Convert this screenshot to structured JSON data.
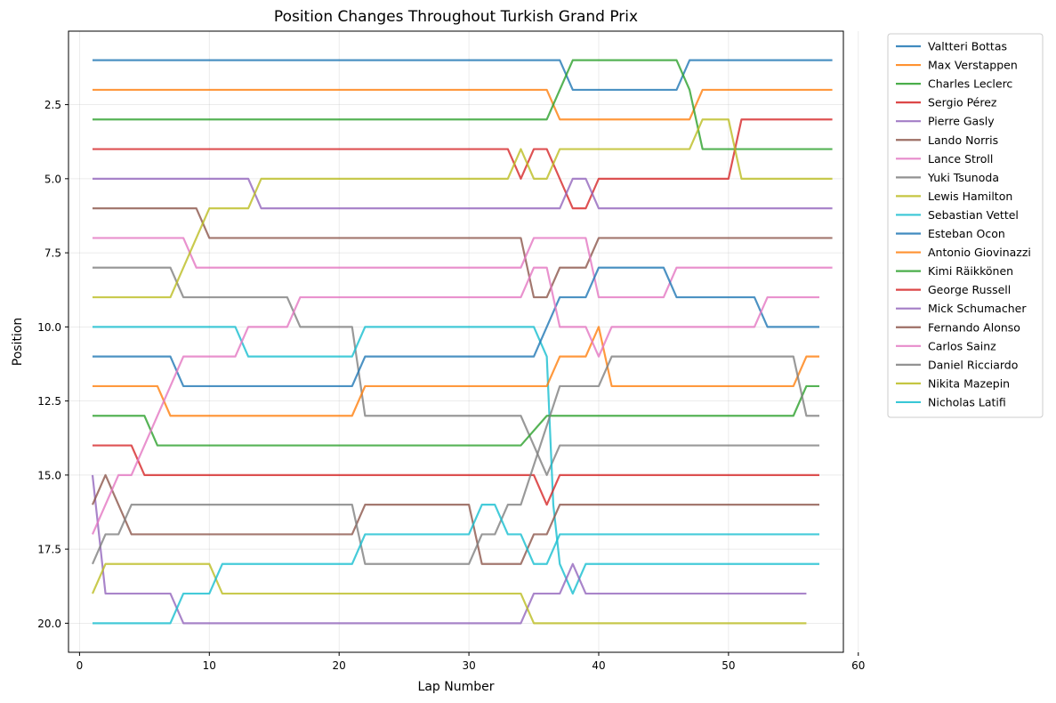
{
  "chart_data": {
    "type": "line",
    "title": "Position Changes Throughout Turkish Grand Prix",
    "xlabel": "Lap Number",
    "ylabel": "Position",
    "xlim": [
      -0.85,
      58.85
    ],
    "ylim": [
      20.98,
      0.02
    ],
    "y_inverted": true,
    "xticks": [
      0,
      10,
      20,
      30,
      40,
      50,
      60
    ],
    "yticks": [
      2.5,
      5.0,
      7.5,
      10.0,
      12.5,
      15.0,
      17.5,
      20.0
    ],
    "ytick_labels": [
      "2.5",
      "5.0",
      "7.5",
      "10.0",
      "12.5",
      "15.0",
      "17.5",
      "20.0"
    ],
    "grid": true,
    "legend_position": "outside-right",
    "series": [
      {
        "name": "Valtteri Bottas",
        "color": "#1f77b4",
        "points": [
          [
            1,
            1
          ],
          [
            37,
            1
          ],
          [
            38,
            2
          ],
          [
            46,
            2
          ],
          [
            47,
            1
          ],
          [
            58,
            1
          ]
        ]
      },
      {
        "name": "Max Verstappen",
        "color": "#ff7f0e",
        "points": [
          [
            1,
            2
          ],
          [
            36,
            2
          ],
          [
            37,
            3
          ],
          [
            47,
            3
          ],
          [
            48,
            2
          ],
          [
            58,
            2
          ]
        ]
      },
      {
        "name": "Charles Leclerc",
        "color": "#2ca02c",
        "points": [
          [
            1,
            3
          ],
          [
            36,
            3
          ],
          [
            38,
            1
          ],
          [
            46,
            1
          ],
          [
            47,
            2
          ],
          [
            48,
            4
          ],
          [
            58,
            4
          ]
        ]
      },
      {
        "name": "Sergio Pérez",
        "color": "#d62728",
        "points": [
          [
            1,
            4
          ],
          [
            33,
            4
          ],
          [
            34,
            5
          ],
          [
            35,
            4
          ],
          [
            36,
            4
          ],
          [
            38,
            6
          ],
          [
            39,
            6
          ],
          [
            40,
            5
          ],
          [
            50,
            5
          ],
          [
            51,
            3
          ],
          [
            58,
            3
          ]
        ]
      },
      {
        "name": "Pierre Gasly",
        "color": "#9467bd",
        "points": [
          [
            1,
            5
          ],
          [
            13,
            5
          ],
          [
            14,
            6
          ],
          [
            37,
            6
          ],
          [
            38,
            5
          ],
          [
            39,
            5
          ],
          [
            40,
            6
          ],
          [
            58,
            6
          ]
        ]
      },
      {
        "name": "Lando Norris",
        "color": "#8c564b",
        "points": [
          [
            1,
            6
          ],
          [
            9,
            6
          ],
          [
            10,
            7
          ],
          [
            34,
            7
          ],
          [
            35,
            9
          ],
          [
            36,
            9
          ],
          [
            37,
            8
          ],
          [
            39,
            8
          ],
          [
            40,
            7
          ],
          [
            58,
            7
          ]
        ]
      },
      {
        "name": "Lance Stroll",
        "color": "#e377c2",
        "points": [
          [
            1,
            7
          ],
          [
            8,
            7
          ],
          [
            9,
            8
          ],
          [
            34,
            8
          ],
          [
            35,
            7
          ],
          [
            39,
            7
          ],
          [
            40,
            9
          ],
          [
            45,
            9
          ],
          [
            46,
            8
          ],
          [
            58,
            8
          ]
        ]
      },
      {
        "name": "Yuki Tsunoda",
        "color": "#7f7f7f",
        "points": [
          [
            1,
            8
          ],
          [
            7,
            8
          ],
          [
            8,
            9
          ],
          [
            16,
            9
          ],
          [
            17,
            10
          ],
          [
            21,
            10
          ],
          [
            22,
            13
          ],
          [
            34,
            13
          ],
          [
            35,
            14
          ],
          [
            36,
            15
          ],
          [
            37,
            14
          ],
          [
            57,
            14
          ]
        ]
      },
      {
        "name": "Lewis Hamilton",
        "color": "#bcbd22",
        "points": [
          [
            1,
            9
          ],
          [
            7,
            9
          ],
          [
            10,
            6
          ],
          [
            13,
            6
          ],
          [
            14,
            5
          ],
          [
            33,
            5
          ],
          [
            34,
            4
          ],
          [
            35,
            5
          ],
          [
            36,
            5
          ],
          [
            37,
            4
          ],
          [
            47,
            4
          ],
          [
            48,
            3
          ],
          [
            50,
            3
          ],
          [
            51,
            5
          ],
          [
            58,
            5
          ]
        ]
      },
      {
        "name": "Sebastian Vettel",
        "color": "#17becf",
        "points": [
          [
            1,
            10
          ],
          [
            12,
            10
          ],
          [
            13,
            11
          ],
          [
            21,
            11
          ],
          [
            22,
            10
          ],
          [
            35,
            10
          ],
          [
            36,
            11
          ],
          [
            36.5,
            16
          ],
          [
            37,
            18
          ],
          [
            38,
            19
          ],
          [
            39,
            18
          ],
          [
            57,
            18
          ]
        ]
      },
      {
        "name": "Esteban Ocon",
        "color": "#1f77b4",
        "points": [
          [
            1,
            11
          ],
          [
            7,
            11
          ],
          [
            8,
            12
          ],
          [
            21,
            12
          ],
          [
            22,
            11
          ],
          [
            35,
            11
          ],
          [
            37,
            9
          ],
          [
            39,
            9
          ],
          [
            40,
            8
          ],
          [
            45,
            8
          ],
          [
            46,
            9
          ],
          [
            52,
            9
          ],
          [
            53,
            10
          ],
          [
            57,
            10
          ]
        ]
      },
      {
        "name": "Antonio Giovinazzi",
        "color": "#ff7f0e",
        "points": [
          [
            1,
            12
          ],
          [
            6,
            12
          ],
          [
            7,
            13
          ],
          [
            21,
            13
          ],
          [
            22,
            12
          ],
          [
            36,
            12
          ],
          [
            37,
            11
          ],
          [
            39,
            11
          ],
          [
            40,
            10
          ],
          [
            41,
            12
          ],
          [
            55,
            12
          ],
          [
            56,
            11
          ],
          [
            57,
            11
          ]
        ]
      },
      {
        "name": "Kimi Räikkönen",
        "color": "#2ca02c",
        "points": [
          [
            1,
            13
          ],
          [
            5,
            13
          ],
          [
            6,
            14
          ],
          [
            34,
            14
          ],
          [
            36,
            13
          ],
          [
            55,
            13
          ],
          [
            56,
            12
          ],
          [
            57,
            12
          ]
        ]
      },
      {
        "name": "George Russell",
        "color": "#d62728",
        "points": [
          [
            1,
            14
          ],
          [
            4,
            14
          ],
          [
            5,
            15
          ],
          [
            35,
            15
          ],
          [
            36,
            16
          ],
          [
            37,
            15
          ],
          [
            57,
            15
          ]
        ]
      },
      {
        "name": "Mick Schumacher",
        "color": "#9467bd",
        "points": [
          [
            1,
            15
          ],
          [
            2,
            19
          ],
          [
            7,
            19
          ],
          [
            8,
            20
          ],
          [
            34,
            20
          ],
          [
            35,
            19
          ],
          [
            37,
            19
          ],
          [
            38,
            18
          ],
          [
            39,
            19
          ],
          [
            56,
            19
          ]
        ]
      },
      {
        "name": "Fernando Alonso",
        "color": "#8c564b",
        "points": [
          [
            1,
            16
          ],
          [
            2,
            15
          ],
          [
            4,
            17
          ],
          [
            21,
            17
          ],
          [
            22,
            16
          ],
          [
            30,
            16
          ],
          [
            31,
            18
          ],
          [
            34,
            18
          ],
          [
            35,
            17
          ],
          [
            36,
            17
          ],
          [
            37,
            16
          ],
          [
            57,
            16
          ]
        ]
      },
      {
        "name": "Carlos Sainz",
        "color": "#e377c2",
        "points": [
          [
            1,
            17
          ],
          [
            3,
            15
          ],
          [
            4,
            15
          ],
          [
            8,
            11
          ],
          [
            12,
            11
          ],
          [
            13,
            10
          ],
          [
            16,
            10
          ],
          [
            17,
            9
          ],
          [
            34,
            9
          ],
          [
            35,
            8
          ],
          [
            36,
            8
          ],
          [
            37,
            10
          ],
          [
            38,
            10
          ],
          [
            39,
            10
          ],
          [
            40,
            11
          ],
          [
            41,
            10
          ],
          [
            52,
            10
          ],
          [
            53,
            9
          ],
          [
            57,
            9
          ]
        ]
      },
      {
        "name": "Daniel Ricciardo",
        "color": "#7f7f7f",
        "points": [
          [
            1,
            18
          ],
          [
            2,
            17
          ],
          [
            3,
            17
          ],
          [
            4,
            16
          ],
          [
            21,
            16
          ],
          [
            22,
            18
          ],
          [
            30,
            18
          ],
          [
            31,
            17
          ],
          [
            32,
            17
          ],
          [
            33,
            16
          ],
          [
            34,
            16
          ],
          [
            37,
            12
          ],
          [
            40,
            12
          ],
          [
            41,
            11
          ],
          [
            55,
            11
          ],
          [
            56,
            13
          ],
          [
            57,
            13
          ]
        ]
      },
      {
        "name": "Nikita Mazepin",
        "color": "#bcbd22",
        "points": [
          [
            1,
            19
          ],
          [
            2,
            18
          ],
          [
            10,
            18
          ],
          [
            11,
            19
          ],
          [
            34,
            19
          ],
          [
            35,
            20
          ],
          [
            56,
            20
          ]
        ]
      },
      {
        "name": "Nicholas Latifi",
        "color": "#17becf",
        "points": [
          [
            1,
            20
          ],
          [
            7,
            20
          ],
          [
            8,
            19
          ],
          [
            10,
            19
          ],
          [
            11,
            18
          ],
          [
            21,
            18
          ],
          [
            22,
            17
          ],
          [
            30,
            17
          ],
          [
            31,
            16
          ],
          [
            32,
            16
          ],
          [
            33,
            17
          ],
          [
            34,
            17
          ],
          [
            35,
            18
          ],
          [
            36,
            18
          ],
          [
            37,
            17
          ],
          [
            57,
            17
          ]
        ]
      }
    ]
  }
}
